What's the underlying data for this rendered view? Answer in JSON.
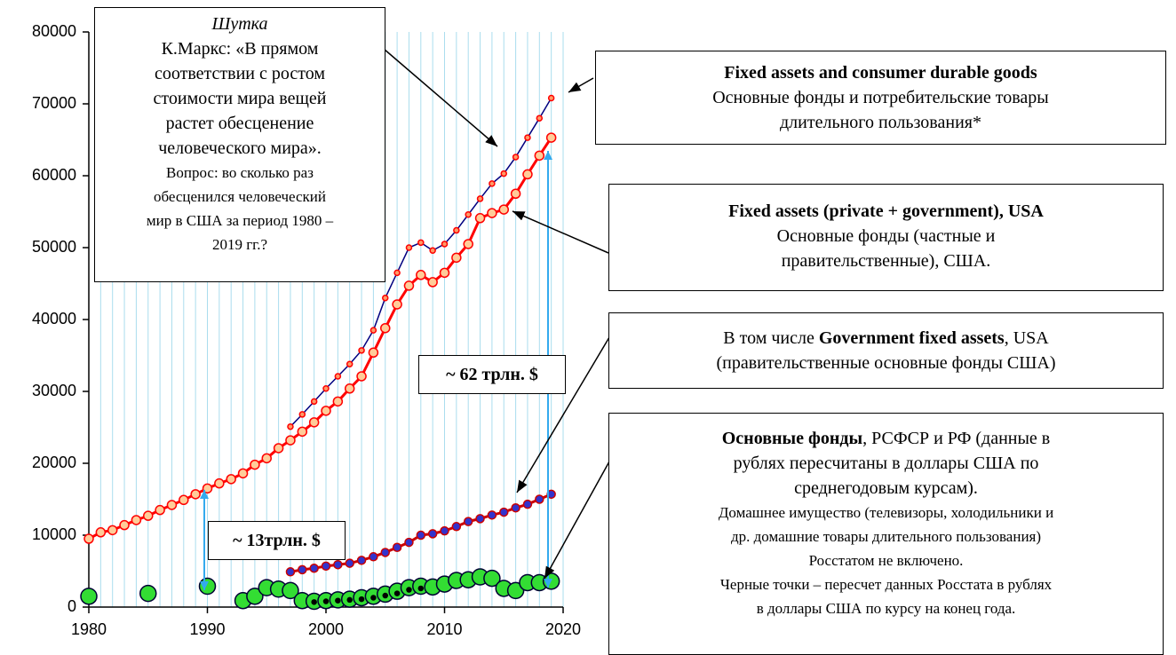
{
  "chart_data": {
    "type": "line",
    "xlim": [
      1980,
      2020
    ],
    "xticks": [
      1980,
      1990,
      2000,
      2010,
      2020
    ],
    "ylim": [
      0,
      80000
    ],
    "yticks": [
      0,
      10000,
      20000,
      30000,
      40000,
      50000,
      60000,
      70000,
      80000
    ],
    "grid_x_step": 1,
    "grid_color": "#aaddee",
    "series": [
      {
        "x": [
          1997,
          1998,
          1999,
          2000,
          2001,
          2002,
          2003,
          2004,
          2005,
          2006,
          2007,
          2008,
          2009,
          2010,
          2011,
          2012,
          2013,
          2014,
          2015,
          2016,
          2017,
          2018,
          2019
        ],
        "values": [
          25100,
          26800,
          28600,
          30400,
          32100,
          33800,
          35700,
          38500,
          43000,
          46500,
          50000,
          50700,
          49600,
          50500,
          52400,
          54600,
          56800,
          58900,
          60300,
          62600,
          65300,
          68000,
          70800
        ],
        "line_color": "#000080",
        "line_width": 1.5,
        "marker_radius": 3,
        "marker_fill": "#ff9966",
        "marker_stroke": "#ff0000"
      },
      {
        "x": [
          1980,
          1981,
          1982,
          1983,
          1984,
          1985,
          1986,
          1987,
          1988,
          1989,
          1990,
          1991,
          1992,
          1993,
          1994,
          1995,
          1996,
          1997,
          1998,
          1999,
          2000,
          2001,
          2002,
          2003,
          2004,
          2005,
          2006,
          2007,
          2008,
          2009,
          2010,
          2011,
          2012,
          2013,
          2014,
          2015,
          2016,
          2017,
          2018,
          2019
        ],
        "values": [
          9500,
          10400,
          10700,
          11400,
          12100,
          12700,
          13500,
          14200,
          14900,
          15700,
          16500,
          17200,
          17800,
          18600,
          19800,
          20700,
          22100,
          23200,
          24400,
          25700,
          27300,
          28600,
          30400,
          32100,
          35400,
          38800,
          42100,
          44700,
          46200,
          45200,
          46500,
          48600,
          50500,
          54100,
          54800,
          55300,
          57500,
          60200,
          62800,
          65300
        ],
        "line_color": "#ff0000",
        "line_width": 3,
        "marker_radius": 5,
        "marker_fill": "#ffcc99",
        "marker_stroke": "#ff0000"
      },
      {
        "x": [
          1997,
          1998,
          1999,
          2000,
          2001,
          2002,
          2003,
          2004,
          2005,
          2006,
          2007,
          2008,
          2009,
          2010,
          2011,
          2012,
          2013,
          2014,
          2015,
          2016,
          2017,
          2018,
          2019
        ],
        "values": [
          4900,
          5200,
          5400,
          5700,
          5900,
          6100,
          6500,
          7000,
          7600,
          8300,
          9000,
          10000,
          10200,
          10600,
          11200,
          11900,
          12300,
          12800,
          13200,
          13800,
          14300,
          15000,
          15700
        ],
        "line_color": "#cc0000",
        "line_width": 3,
        "marker_radius": 4.5,
        "marker_fill": "#3333cc",
        "marker_stroke": "#cc0000"
      },
      {
        "x": [
          1980,
          1985,
          1990,
          1993,
          1994,
          1995,
          1996,
          1997,
          1998,
          1999,
          2000,
          2001,
          2002,
          2003,
          2004,
          2005,
          2006,
          2007,
          2008,
          2009,
          2010,
          2011,
          2012,
          2013,
          2014,
          2015,
          2016,
          2017,
          2018,
          2019
        ],
        "values": [
          1500,
          1900,
          2900,
          900,
          1500,
          2700,
          2500,
          2300,
          900,
          800,
          900,
          1000,
          1100,
          1300,
          1500,
          1800,
          2200,
          2700,
          2900,
          2800,
          3200,
          3700,
          3800,
          4200,
          4000,
          2600,
          2300,
          3400,
          3400,
          3600
        ],
        "marker_radius": 9,
        "marker_fill": "#33dd33",
        "marker_stroke": "#000033"
      },
      {
        "x": [
          1999,
          2000,
          2001,
          2002,
          2003,
          2004,
          2005,
          2006,
          2007,
          2008
        ],
        "values": [
          700,
          800,
          900,
          1000,
          1100,
          1300,
          1600,
          1900,
          2400,
          2600
        ],
        "marker_radius": 2.5,
        "marker_fill": "#000000",
        "marker_stroke": "#000000"
      }
    ],
    "annotations": [
      {
        "lines": [
          [
            {
              "text": "Шутка",
              "italic": true
            }
          ],
          [
            {
              "text": "К.Маркс: «В прямом"
            }
          ],
          [
            {
              "text": "соответствии с ростом"
            }
          ],
          [
            {
              "text": "стоимости мира вещей"
            }
          ],
          [
            {
              "text": "растет обесценение"
            }
          ],
          [
            {
              "text": "человеческого мира»."
            }
          ],
          [
            {
              "text": "Вопрос: во сколько раз"
            }
          ],
          [
            {
              "text": "обесценился человеческий"
            }
          ],
          [
            {
              "text": "мир в США за период 1980 –"
            }
          ],
          [
            {
              "text": "2019 гг.?"
            }
          ]
        ]
      },
      {
        "lines": [
          [
            {
              "text": "Fixed assets and consumer durable goods",
              "bold": true
            }
          ],
          [
            {
              "text": "Основные фонды и потребительские товары"
            }
          ],
          [
            {
              "text": "длительного пользования*"
            }
          ]
        ]
      },
      {
        "lines": [
          [
            {
              "text": "Fixed assets (private + government), USA",
              "bold": true
            }
          ],
          [
            {
              "text": "Основные фонды (частные и"
            }
          ],
          [
            {
              "text": "правительственные), США."
            }
          ]
        ]
      },
      {
        "lines": [
          [
            {
              "text": "В том числе "
            },
            {
              "text": "Government fixed assets",
              "bold": true
            },
            {
              "text": ", USA"
            }
          ],
          [
            {
              "text": "(правительственные основные фонды США)"
            }
          ]
        ]
      },
      {
        "lines": [
          [
            {
              "text": "Основные фонды",
              "bold": true
            },
            {
              "text": ", РСФСР и РФ (данные в"
            }
          ],
          [
            {
              "text": "рублях пересчитаны в доллары США по"
            }
          ],
          [
            {
              "text": "среднегодовым курсам)."
            }
          ],
          [
            {
              "text": "Домашнее имущество (телевизоры, холодильники и"
            }
          ],
          [
            {
              "text": "др. домашние товары длительного пользования)"
            }
          ],
          [
            {
              "text": "Росстатом не включено."
            }
          ],
          [
            {
              "text": "Черные точки – пересчет данных Росстата в рублях"
            }
          ],
          [
            {
              "text": "в доллары США по курсу на конец года."
            }
          ]
        ]
      },
      {
        "lines": [
          [
            {
              "text": "~ 62 трлн. $",
              "bold": true
            }
          ]
        ]
      },
      {
        "lines": [
          [
            {
              "text": "~ 13трлн. $",
              "bold": true
            }
          ]
        ]
      }
    ]
  }
}
